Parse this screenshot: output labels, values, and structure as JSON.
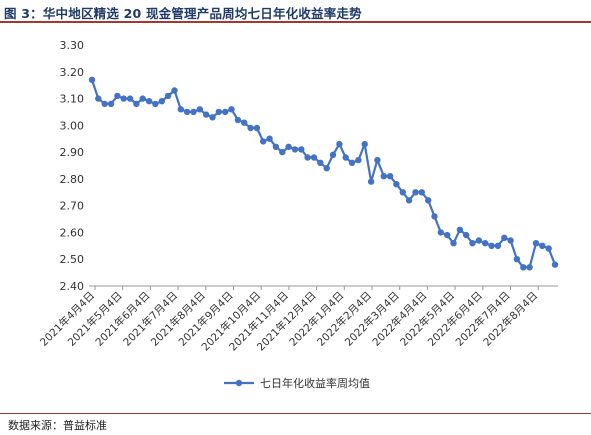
{
  "figure": {
    "title": "图 3：华中地区精选 20 现金管理产品周均七日年化收益率走势",
    "source": "数据来源：普益标准"
  },
  "chart_data": {
    "type": "line",
    "title": "",
    "xlabel": "",
    "ylabel": "",
    "ylim": [
      2.4,
      3.3
    ],
    "yticks": [
      "2.40",
      "2.50",
      "2.60",
      "2.70",
      "2.80",
      "2.90",
      "3.00",
      "3.10",
      "3.20",
      "3.30"
    ],
    "grid": false,
    "legend_position": "bottom",
    "x_tick_labels": [
      "2021年4月4日",
      "2021年5月4日",
      "2021年6月4日",
      "2021年7月4日",
      "2021年8月4日",
      "2021年9月4日",
      "2021年10月4日",
      "2021年11月4日",
      "2021年12月4日",
      "2022年1月4日",
      "2022年2月4日",
      "2022年3月4日",
      "2022年4月4日",
      "2022年5月4日",
      "2022年6月4日",
      "2022年7月4日",
      "2022年8月4日"
    ],
    "series": [
      {
        "name": "七日年化收益率周均值",
        "color": "#4472c4",
        "values": [
          3.17,
          3.1,
          3.08,
          3.08,
          3.11,
          3.1,
          3.1,
          3.08,
          3.1,
          3.09,
          3.08,
          3.09,
          3.11,
          3.13,
          3.06,
          3.05,
          3.05,
          3.06,
          3.04,
          3.03,
          3.05,
          3.05,
          3.06,
          3.02,
          3.01,
          2.99,
          2.99,
          2.94,
          2.95,
          2.92,
          2.9,
          2.92,
          2.91,
          2.91,
          2.88,
          2.88,
          2.86,
          2.84,
          2.89,
          2.93,
          2.88,
          2.86,
          2.87,
          2.93,
          2.79,
          2.87,
          2.81,
          2.81,
          2.78,
          2.75,
          2.72,
          2.75,
          2.75,
          2.72,
          2.66,
          2.6,
          2.59,
          2.56,
          2.61,
          2.59,
          2.56,
          2.57,
          2.56,
          2.55,
          2.55,
          2.58,
          2.57,
          2.5,
          2.47,
          2.47,
          2.56,
          2.55,
          2.54,
          2.48
        ]
      }
    ]
  }
}
